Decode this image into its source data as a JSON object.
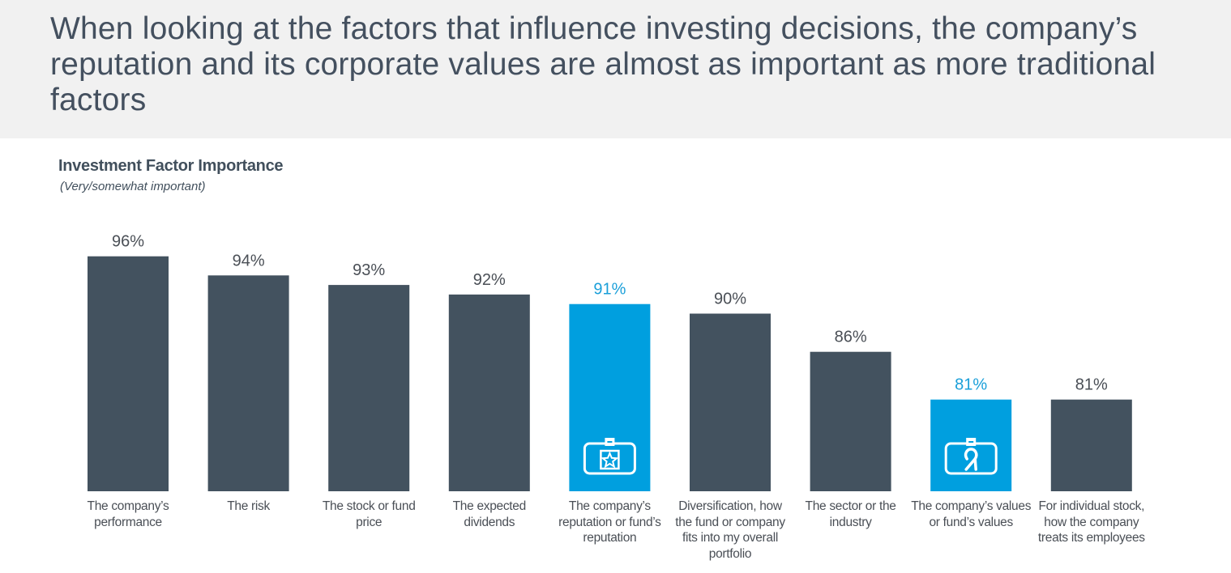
{
  "header": {
    "headline": "When looking at the factors that influence investing decisions, the company’s reputation and its corporate values are almost as important as more traditional factors"
  },
  "colors": {
    "header_bg": "#f1f1f1",
    "bar_default": "#43525f",
    "bar_highlight": "#009fdf",
    "label_default": "#4a4f56",
    "label_highlight": "#1a9fd9"
  },
  "chart_data": {
    "type": "bar",
    "title": "Investment Factor Importance",
    "subtitle": "(Very/somewhat important)",
    "xlabel": "",
    "ylabel": "",
    "ylim": [
      0,
      100
    ],
    "grid": false,
    "categories": [
      "The company’s performance",
      "The risk",
      "The stock or fund price",
      "The expected dividends",
      "The company’s reputation or fund’s reputation",
      "Diversification, how the fund or company fits into my overall portfolio",
      "The sector or the industry",
      "The company’s values or fund’s values",
      "For individual stock, how the company treats its employees"
    ],
    "values": [
      96,
      94,
      93,
      92,
      91,
      90,
      86,
      81,
      81
    ],
    "value_labels": [
      "96%",
      "94%",
      "93%",
      "92%",
      "91%",
      "90%",
      "86%",
      "81%",
      "81%"
    ],
    "highlighted": [
      false,
      false,
      false,
      false,
      true,
      false,
      false,
      true,
      false
    ],
    "icons": [
      null,
      null,
      null,
      null,
      "badge-star-icon",
      null,
      null,
      "badge-ribbon-icon",
      null
    ]
  }
}
